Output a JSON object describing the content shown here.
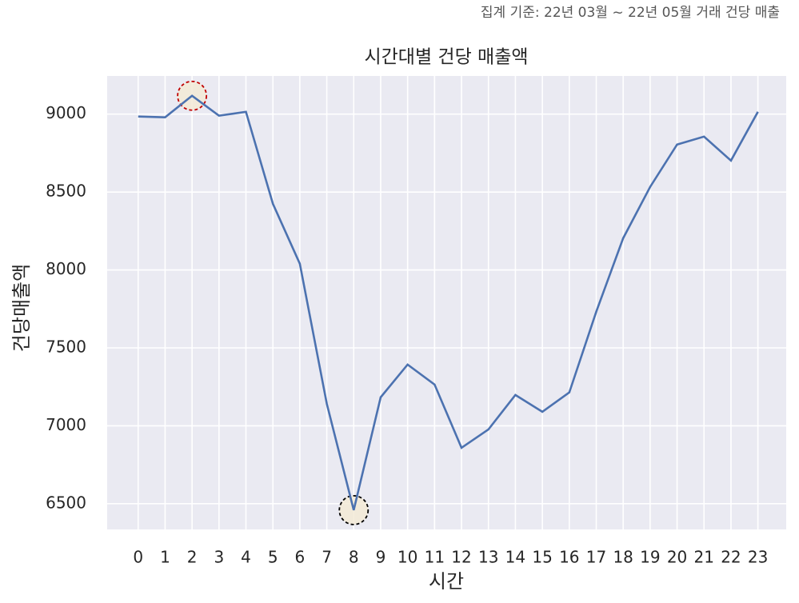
{
  "chart_data": {
    "type": "line",
    "note": "집계 기준: 22년 03월 ~ 22년 05월 거래 건당 매출",
    "title": "시간대별 건당 매출액",
    "xlabel": "시간",
    "ylabel": "건당매출액",
    "x": [
      0,
      1,
      2,
      3,
      4,
      5,
      6,
      7,
      8,
      9,
      10,
      11,
      12,
      13,
      14,
      15,
      16,
      17,
      18,
      19,
      20,
      21,
      22,
      23
    ],
    "series": [
      {
        "color": "#4c72b0",
        "values": [
          8985,
          8980,
          9118,
          8990,
          9015,
          8425,
          8040,
          7142,
          6459,
          7183,
          7393,
          7265,
          6859,
          6977,
          7198,
          7090,
          7214,
          7732,
          8204,
          8533,
          8805,
          8856,
          8702,
          9015
        ]
      }
    ],
    "xlim": [
      -1.15,
      24.05
    ],
    "xticks": [
      0,
      1,
      2,
      3,
      4,
      5,
      6,
      7,
      8,
      9,
      10,
      11,
      12,
      13,
      14,
      15,
      16,
      17,
      18,
      19,
      20,
      21,
      22,
      23
    ],
    "ylim": [
      6335,
      9245
    ],
    "yticks": [
      6500,
      7000,
      7500,
      8000,
      8500,
      9000
    ],
    "grid": true,
    "background": "#eaeaf2",
    "highlights": [
      {
        "index": 2,
        "edge_color": "#c00000",
        "fill": "#f3ead6"
      },
      {
        "index": 8,
        "edge_color": "#000000",
        "fill": "#f3ead6"
      }
    ]
  }
}
